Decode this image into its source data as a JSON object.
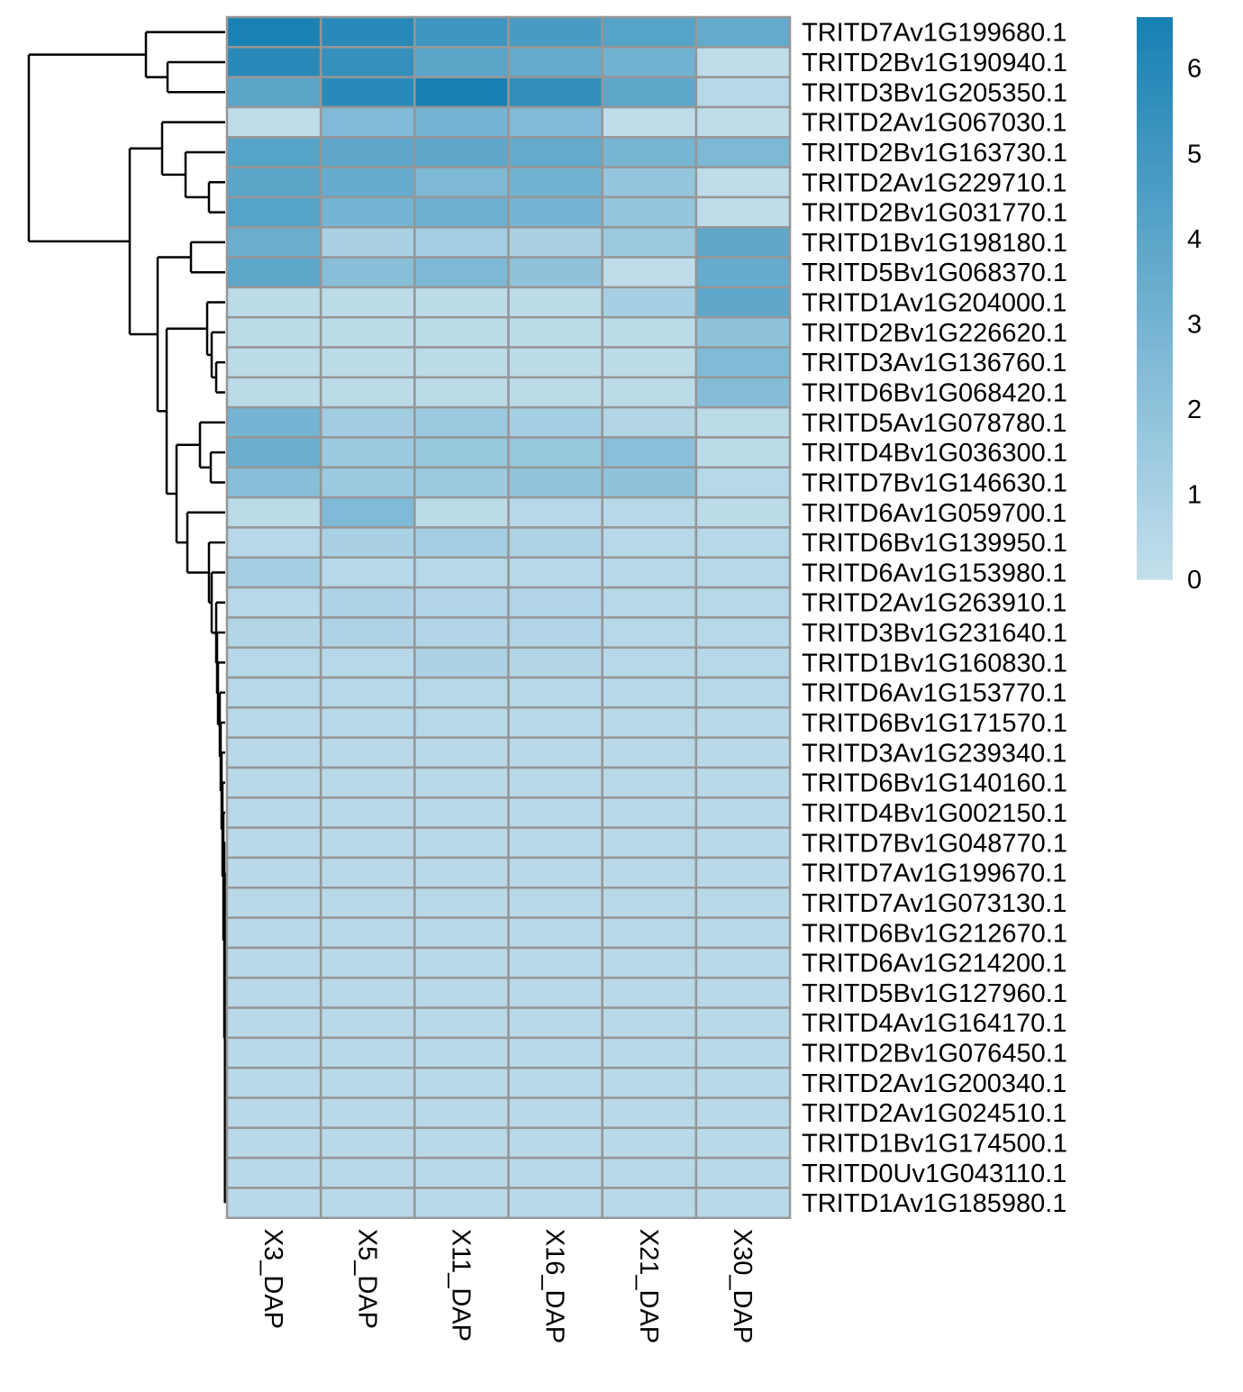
{
  "chart_data": {
    "type": "heatmap",
    "columns": [
      "X3_DAP",
      "X5_DAP",
      "X11_DAP",
      "X16_DAP",
      "X21_DAP",
      "X30_DAP"
    ],
    "rows": [
      "TRITD7Av1G199680.1",
      "TRITD2Bv1G190940.1",
      "TRITD3Bv1G205350.1",
      "TRITD2Av1G067030.1",
      "TRITD2Bv1G163730.1",
      "TRITD2Av1G229710.1",
      "TRITD2Bv1G031770.1",
      "TRITD1Bv1G198180.1",
      "TRITD5Bv1G068370.1",
      "TRITD1Av1G204000.1",
      "TRITD2Bv1G226620.1",
      "TRITD3Av1G136760.1",
      "TRITD6Bv1G068420.1",
      "TRITD5Av1G078780.1",
      "TRITD4Bv1G036300.1",
      "TRITD7Bv1G146630.1",
      "TRITD6Av1G059700.1",
      "TRITD6Bv1G139950.1",
      "TRITD6Av1G153980.1",
      "TRITD2Av1G263910.1",
      "TRITD3Bv1G231640.1",
      "TRITD1Bv1G160830.1",
      "TRITD6Av1G153770.1",
      "TRITD6Bv1G171570.1",
      "TRITD3Av1G239340.1",
      "TRITD6Bv1G140160.1",
      "TRITD4Bv1G002150.1",
      "TRITD7Bv1G048770.1",
      "TRITD7Av1G199670.1",
      "TRITD7Av1G073130.1",
      "TRITD6Bv1G212670.1",
      "TRITD6Av1G214200.1",
      "TRITD5Bv1G127960.1",
      "TRITD4Av1G164170.1",
      "TRITD2Bv1G076450.1",
      "TRITD2Av1G200340.1",
      "TRITD2Av1G024510.1",
      "TRITD1Bv1G174500.1",
      "TRITD0Uv1G043110.1",
      "TRITD1Av1G185980.1"
    ],
    "values": [
      [
        6.5,
        5.9,
        5.1,
        4.7,
        4.2,
        3.7
      ],
      [
        5.9,
        5.5,
        4.0,
        3.7,
        3.1,
        0.2
      ],
      [
        4.0,
        5.9,
        6.6,
        5.6,
        3.9,
        0.5
      ],
      [
        0.2,
        2.6,
        3.0,
        2.6,
        0.2,
        0.2
      ],
      [
        4.2,
        3.8,
        3.8,
        3.7,
        2.9,
        2.7
      ],
      [
        4.0,
        3.6,
        2.7,
        3.1,
        1.8,
        0.2
      ],
      [
        4.2,
        3.0,
        3.3,
        3.0,
        1.8,
        0.2
      ],
      [
        3.4,
        1.0,
        1.2,
        1.0,
        1.5,
        3.8
      ],
      [
        3.9,
        2.3,
        2.7,
        2.0,
        0.2,
        3.6
      ],
      [
        0.3,
        0.3,
        0.3,
        0.3,
        1.1,
        3.8
      ],
      [
        0.3,
        0.3,
        0.3,
        0.3,
        0.3,
        2.0
      ],
      [
        0.3,
        0.3,
        0.3,
        0.3,
        0.3,
        2.6
      ],
      [
        0.3,
        0.3,
        0.3,
        0.3,
        0.3,
        2.4
      ],
      [
        3.0,
        1.3,
        1.5,
        1.2,
        0.6,
        0.3
      ],
      [
        3.4,
        1.5,
        1.7,
        1.7,
        2.2,
        0.3
      ],
      [
        2.3,
        1.5,
        1.5,
        1.9,
        2.0,
        0.5
      ],
      [
        0.3,
        2.6,
        0.3,
        0.5,
        0.5,
        0.3
      ],
      [
        0.5,
        1.0,
        1.2,
        0.8,
        0.5,
        0.5
      ],
      [
        1.2,
        0.5,
        0.5,
        0.5,
        0.5,
        0.5
      ],
      [
        0.5,
        0.8,
        0.7,
        0.7,
        0.5,
        0.5
      ],
      [
        0.6,
        0.8,
        0.7,
        0.7,
        0.5,
        0.5
      ],
      [
        0.5,
        0.5,
        0.9,
        0.6,
        0.5,
        0.5
      ],
      [
        0.5,
        0.5,
        0.5,
        0.5,
        0.5,
        0.5
      ],
      [
        0.4,
        0.5,
        0.5,
        0.4,
        0.4,
        0.4
      ],
      [
        0.4,
        0.4,
        0.4,
        0.4,
        0.4,
        0.4
      ],
      [
        0.4,
        0.4,
        0.4,
        0.4,
        0.4,
        0.4
      ],
      [
        0.4,
        0.4,
        0.4,
        0.4,
        0.4,
        0.4
      ],
      [
        0.4,
        0.4,
        0.4,
        0.4,
        0.4,
        0.4
      ],
      [
        0.4,
        0.4,
        0.4,
        0.4,
        0.4,
        0.4
      ],
      [
        0.4,
        0.4,
        0.4,
        0.4,
        0.4,
        0.4
      ],
      [
        0.4,
        0.4,
        0.4,
        0.4,
        0.4,
        0.4
      ],
      [
        0.4,
        0.4,
        0.4,
        0.4,
        0.4,
        0.4
      ],
      [
        0.4,
        0.4,
        0.4,
        0.4,
        0.4,
        0.4
      ],
      [
        0.4,
        0.4,
        0.4,
        0.4,
        0.4,
        0.4
      ],
      [
        0.4,
        0.4,
        0.4,
        0.4,
        0.4,
        0.4
      ],
      [
        0.4,
        0.4,
        0.4,
        0.4,
        0.4,
        0.4
      ],
      [
        0.4,
        0.4,
        0.4,
        0.4,
        0.4,
        0.4
      ],
      [
        0.4,
        0.4,
        0.4,
        0.4,
        0.4,
        0.4
      ],
      [
        0.4,
        0.4,
        0.4,
        0.4,
        0.4,
        0.4
      ],
      [
        0.4,
        0.4,
        0.4,
        0.4,
        0.4,
        0.4
      ]
    ],
    "colorbar": {
      "min": 0,
      "max": 6.6,
      "ticks": [
        0,
        1,
        2,
        3,
        4,
        5,
        6
      ],
      "low_color": "#c3dfec",
      "high_color": "#1780b3"
    },
    "cell_border_color": "#969696",
    "dendrogram": "rows"
  }
}
